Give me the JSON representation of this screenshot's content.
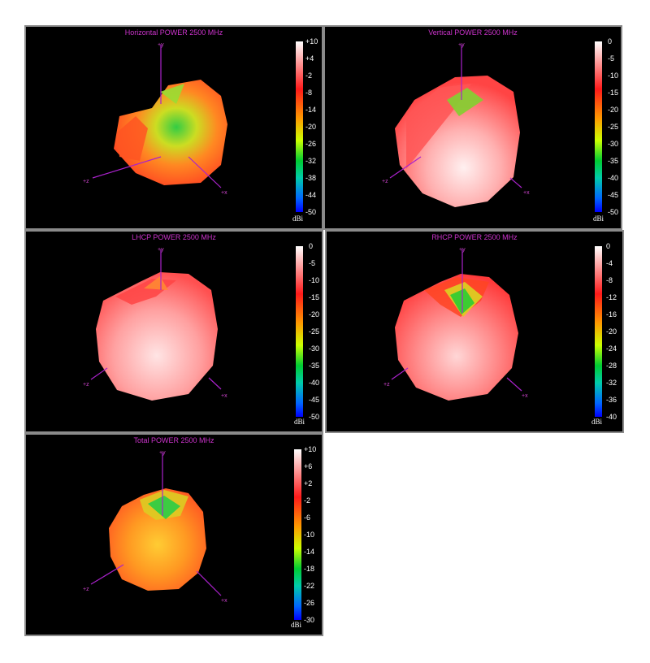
{
  "panels": [
    {
      "title": "Horizontal POWER 2500  MHz",
      "unit": "dBi",
      "ticks": [
        "+10",
        "+4",
        "-2",
        "-8",
        "-14",
        "-20",
        "-26",
        "-32",
        "-38",
        "-44",
        "-50"
      ],
      "axes": {
        "y": "+y",
        "z": "+z",
        "x": "+x"
      }
    },
    {
      "title": "Vertical POWER 2500  MHz",
      "unit": "dBi",
      "ticks": [
        "0",
        "-5",
        "-10",
        "-15",
        "-20",
        "-25",
        "-30",
        "-35",
        "-40",
        "-45",
        "-50"
      ],
      "axes": {
        "y": "+y",
        "z": "+z",
        "x": "+x"
      }
    },
    {
      "title": "LHCP POWER 2500  MHz",
      "unit": "dBi",
      "ticks": [
        "0",
        "-5",
        "-10",
        "-15",
        "-20",
        "-25",
        "-30",
        "-35",
        "-40",
        "-45",
        "-50"
      ],
      "axes": {
        "y": "+y",
        "z": "+z",
        "x": "+x"
      }
    },
    {
      "title": "RHCP POWER 2500  MHz",
      "unit": "dBi",
      "ticks": [
        "0",
        "-4",
        "-8",
        "-12",
        "-16",
        "-20",
        "-24",
        "-28",
        "-32",
        "-36",
        "-40"
      ],
      "axes": {
        "y": "+y",
        "z": "+z",
        "x": "+x"
      }
    },
    {
      "title": "Total POWER 2500  MHz",
      "unit": "dBi",
      "ticks": [
        "+10",
        "+6",
        "+2",
        "-2",
        "-6",
        "-10",
        "-14",
        "-18",
        "-22",
        "-26",
        "-30"
      ],
      "axes": {
        "y": "+y",
        "z": "+z",
        "x": "+x"
      }
    }
  ]
}
